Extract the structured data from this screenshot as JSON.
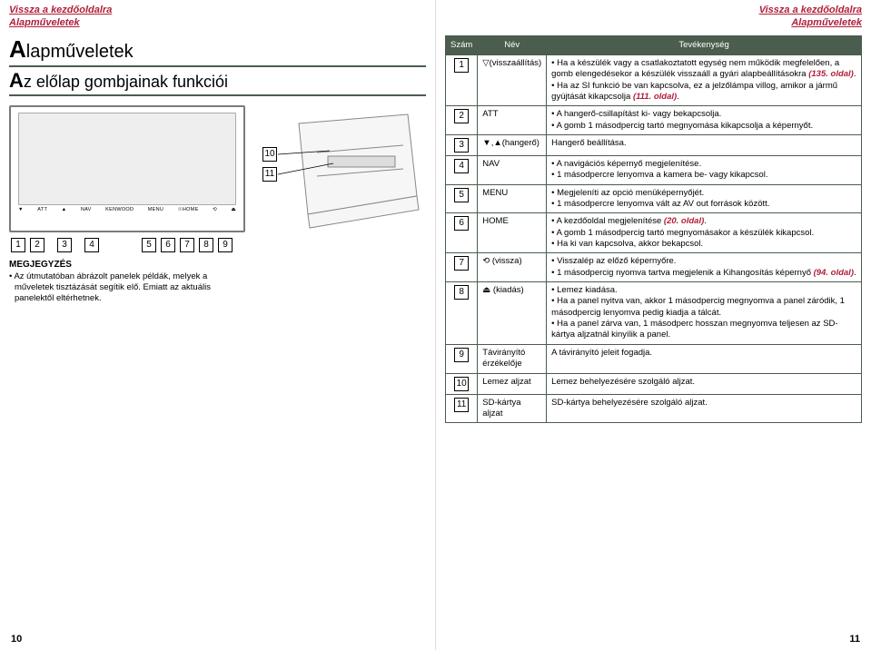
{
  "header": {
    "link1": "Vissza a kezdőoldalra",
    "link2": "Alapműveletek"
  },
  "left": {
    "title": "lapműveletek",
    "title_cap": "A",
    "subtitle": "z előlap gombjainak funkciói",
    "subtitle_cap": "A",
    "device_buttons": [
      "▼",
      "ATT",
      "▲",
      "NAV",
      "KENWOOD",
      "MENU",
      "☉HOME",
      "⟲",
      "⏏"
    ],
    "row_nums": [
      "1",
      "2",
      "3",
      "4",
      "5",
      "6",
      "7",
      "8",
      "9"
    ],
    "panel_nums": [
      "10",
      "11"
    ],
    "note_title": "MEGJEGYZÉS",
    "note_body": "Az útmutatóban ábrázolt panelek példák, melyek a műveletek tisztázását segítik elő. Emiatt az aktuális panelektől eltérhetnek.",
    "page_num": "10"
  },
  "right": {
    "cols": [
      "Szám",
      "Név",
      "Tevékenység"
    ],
    "rows": [
      {
        "num": "1",
        "name": "▽(visszaállítás)",
        "acts": [
          {
            "t": "Ha a készülék vagy a csatlakoztatott egység nem működik megfelelően, a gomb elengedésekor a készülék visszaáll a gyári alapbeállításokra ",
            "ref": "(135. oldal)",
            "tail": "."
          },
          {
            "t": "Ha az SI funkció be van kapcsolva, ez a jelzőlámpa villog, amikor a jármű gyújtását kikapcsolja ",
            "ref": "(111. oldal)",
            "tail": "."
          }
        ]
      },
      {
        "num": "2",
        "name": "ATT",
        "acts": [
          {
            "t": "A hangerő-csillapítást ki- vagy bekapcsolja."
          },
          {
            "t": "A gomb 1 másodpercig tartó megnyomása kikapcsolja a képernyőt."
          }
        ]
      },
      {
        "num": "3",
        "name": "▼,▲(hangerő)",
        "acts": [
          {
            "t": "Hangerő beállítása.",
            "plain": true
          }
        ]
      },
      {
        "num": "4",
        "name": "NAV",
        "acts": [
          {
            "t": "A navigációs képernyő megjelenítése."
          },
          {
            "t": "1 másodpercre lenyomva a kamera be- vagy kikapcsol."
          }
        ]
      },
      {
        "num": "5",
        "name": "MENU",
        "acts": [
          {
            "t": "Megjeleníti az opció menüképernyőjét."
          },
          {
            "t": "1 másodpercre lenyomva vált az AV out források között."
          }
        ]
      },
      {
        "num": "6",
        "name": "HOME",
        "acts": [
          {
            "t": "A kezdőoldal megjelenítése ",
            "ref": "(20. oldal)",
            "tail": "."
          },
          {
            "t": "A gomb 1 másodpercig tartó megnyomásakor a készülék kikapcsol."
          },
          {
            "t": "Ha ki van kapcsolva, akkor bekapcsol."
          }
        ]
      },
      {
        "num": "7",
        "name": "⟲ (vissza)",
        "acts": [
          {
            "t": "Visszalép az előző képernyőre."
          },
          {
            "t": "1 másodpercig nyomva tartva megjelenik a Kihangosítás képernyő ",
            "ref": "(94. oldal)",
            "tail": "."
          }
        ]
      },
      {
        "num": "8",
        "name": "⏏ (kiadás)",
        "acts": [
          {
            "t": "Lemez kiadása."
          },
          {
            "t": "Ha a panel nyitva van, akkor 1 másodpercig megnyomva a panel záródik, 1 másodpercig lenyomva pedig kiadja a tálcát."
          },
          {
            "t": "Ha a panel zárva van, 1 másodperc hosszan megnyomva teljesen az SD-kártya aljzatnál kinyílik a panel."
          }
        ]
      },
      {
        "num": "9",
        "name": "Távirányító érzékelője",
        "acts": [
          {
            "t": "A távirányító jeleit fogadja.",
            "plain": true
          }
        ]
      },
      {
        "num": "10",
        "name": "Lemez aljzat",
        "acts": [
          {
            "t": "Lemez behelyezésére szolgáló aljzat.",
            "plain": true
          }
        ]
      },
      {
        "num": "11",
        "name": "SD-kártya aljzat",
        "acts": [
          {
            "t": "SD-kártya behelyezésére szolgáló aljzat.",
            "plain": true
          }
        ]
      }
    ],
    "page_num": "11"
  }
}
